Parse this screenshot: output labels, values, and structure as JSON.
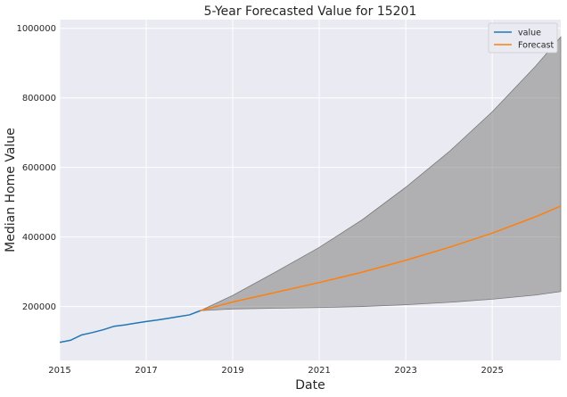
{
  "chart_data": {
    "type": "line",
    "title": "5-Year Forecasted Value for 15201",
    "xlabel": "Date",
    "ylabel": "Median Home Value",
    "xlim": [
      "2015-01",
      "2026-08"
    ],
    "ylim": [
      45000,
      1025000
    ],
    "x_ticks": [
      "2015",
      "2017",
      "2019",
      "2021",
      "2023",
      "2025"
    ],
    "y_ticks": [
      200000,
      400000,
      600000,
      800000,
      1000000
    ],
    "y_tick_labels": [
      "200000",
      "400000",
      "600000",
      "800000",
      "1000000"
    ],
    "grid": true,
    "legend_position": "top-right",
    "series": [
      {
        "name": "value",
        "color": "#1f77b4",
        "x": [
          "2015-01",
          "2015-04",
          "2015-07",
          "2015-10",
          "2016-01",
          "2016-04",
          "2016-07",
          "2016-10",
          "2017-01",
          "2017-04",
          "2017-07",
          "2017-10",
          "2018-01",
          "2018-04"
        ],
        "values": [
          97000,
          103000,
          118000,
          125000,
          133000,
          143000,
          147000,
          152000,
          157000,
          161000,
          166000,
          171000,
          176000,
          188000
        ]
      },
      {
        "name": "Forecast",
        "color": "#ff7f0e",
        "x": [
          "2018-04",
          "2019-01",
          "2020-01",
          "2021-01",
          "2022-01",
          "2023-01",
          "2024-01",
          "2025-01",
          "2026-01",
          "2026-08"
        ],
        "values": [
          188000,
          213000,
          241000,
          269000,
          299000,
          333000,
          370000,
          411000,
          458000,
          489000
        ]
      }
    ],
    "confidence_band": {
      "color": "#808080",
      "x": [
        "2018-04",
        "2019-01",
        "2020-01",
        "2021-01",
        "2022-01",
        "2023-01",
        "2024-01",
        "2025-01",
        "2026-01",
        "2026-08"
      ],
      "lower": [
        188000,
        193000,
        195000,
        197000,
        200000,
        205000,
        212000,
        221000,
        233000,
        243000
      ],
      "upper": [
        188000,
        232000,
        300000,
        370000,
        450000,
        543000,
        645000,
        760000,
        891000,
        975000
      ]
    }
  }
}
